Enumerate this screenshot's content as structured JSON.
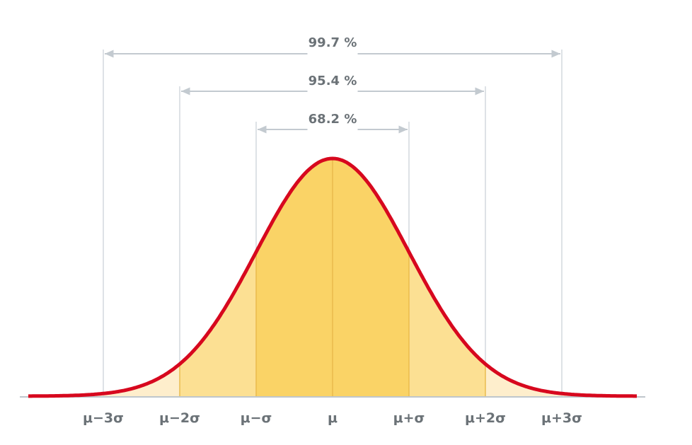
{
  "chart_data": {
    "type": "area",
    "title": "",
    "xlabel": "",
    "ylabel": "",
    "distribution": "normal",
    "xlim": [
      -4,
      4
    ],
    "grid": false,
    "legend": "none",
    "ticks": [
      {
        "x": -3,
        "label": "μ−3σ"
      },
      {
        "x": -2,
        "label": "μ−2σ"
      },
      {
        "x": -1,
        "label": "μ−σ"
      },
      {
        "x": 0,
        "label": "μ"
      },
      {
        "x": 1,
        "label": "μ+σ"
      },
      {
        "x": 2,
        "label": "μ+2σ"
      },
      {
        "x": 3,
        "label": "μ+3σ"
      }
    ],
    "intervals": [
      {
        "from": -3,
        "to": 3,
        "label": "99.7 %",
        "percent": 99.7
      },
      {
        "from": -2,
        "to": 2,
        "label": "95.4 %",
        "percent": 95.4
      },
      {
        "from": -1,
        "to": 1,
        "label": "68.2 %",
        "percent": 68.2
      }
    ],
    "bands": [
      {
        "from": -3,
        "to": -2,
        "shade": "light"
      },
      {
        "from": -2,
        "to": -1,
        "shade": "medium"
      },
      {
        "from": -1,
        "to": 1,
        "shade": "dark"
      },
      {
        "from": 1,
        "to": 2,
        "shade": "medium"
      },
      {
        "from": 2,
        "to": 3,
        "shade": "light"
      }
    ],
    "colors": {
      "curve": "#d7081e",
      "fill_dark": "#fad366",
      "fill_medium": "#fce093",
      "fill_light": "#feeecc",
      "guide": "#cfd6dc",
      "arrow": "#c3cad0",
      "axis": "#bfc6cc",
      "text": "#6b7277"
    }
  }
}
